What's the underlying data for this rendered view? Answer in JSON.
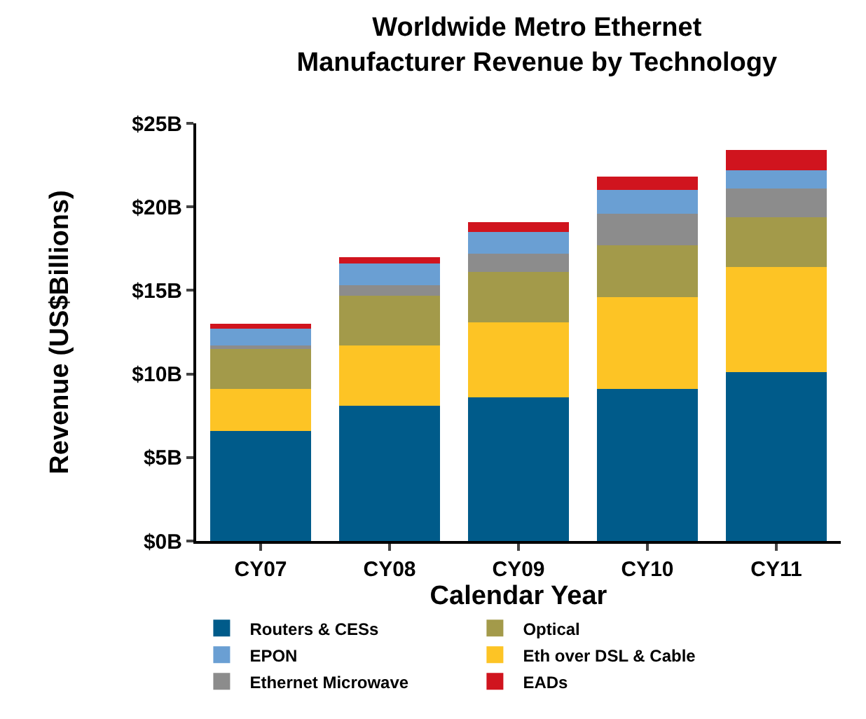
{
  "chart_data": {
    "type": "bar",
    "stacked": true,
    "title": "Worldwide Metro Ethernet\nManufacturer Revenue by Technology",
    "xlabel": "Calendar Year",
    "ylabel": "Revenue (US$Billions)",
    "categories": [
      "CY07",
      "CY08",
      "CY09",
      "CY10",
      "CY11"
    ],
    "series": [
      {
        "name": "Routers & CESs",
        "color": "#005b8a",
        "values": [
          6.6,
          8.1,
          8.6,
          9.1,
          10.1
        ]
      },
      {
        "name": "Eth over DSL & Cable",
        "color": "#fdc425",
        "values": [
          2.5,
          3.6,
          4.5,
          5.5,
          6.3
        ]
      },
      {
        "name": "Optical",
        "color": "#a39a4a",
        "values": [
          2.4,
          3.0,
          3.0,
          3.1,
          3.0
        ]
      },
      {
        "name": "Ethernet Microwave",
        "color": "#8c8c8c",
        "values": [
          0.2,
          0.6,
          1.1,
          1.9,
          1.7
        ]
      },
      {
        "name": "EPON",
        "color": "#6a9fd3",
        "values": [
          1.0,
          1.3,
          1.3,
          1.4,
          1.1
        ]
      },
      {
        "name": "EADs",
        "color": "#d0141e",
        "values": [
          0.3,
          0.4,
          0.6,
          0.8,
          1.2
        ]
      }
    ],
    "ylim": [
      0,
      25
    ],
    "yticks": [
      {
        "value": 0,
        "label": "$0B"
      },
      {
        "value": 5,
        "label": "$5B"
      },
      {
        "value": 10,
        "label": "$10B"
      },
      {
        "value": 15,
        "label": "$15B"
      },
      {
        "value": 20,
        "label": "$20B"
      },
      {
        "value": 25,
        "label": "$25B"
      }
    ],
    "legend": "bottom"
  }
}
